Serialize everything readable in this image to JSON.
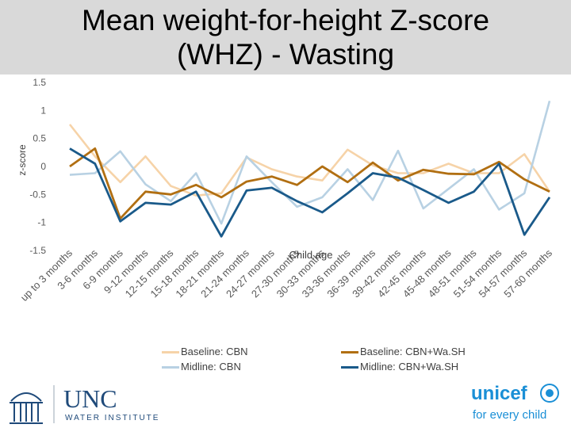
{
  "title_line1": "Mean weight-for-height Z-score",
  "title_line2": "(WHZ) - Wasting",
  "chart_data": {
    "type": "line",
    "xlabel": "Child age",
    "ylabel": "z-score",
    "ylim": [
      -1.5,
      1.5
    ],
    "yticks": [
      1.5,
      1,
      0.5,
      0,
      -0.5,
      -1,
      -1.5
    ],
    "ytick_labels": [
      "1.5",
      "1",
      "0.5",
      "0",
      "-0.5",
      "-1",
      "-1.5"
    ],
    "grid": false,
    "legend_position": "bottom",
    "categories": [
      "up to 3 months",
      "3-6 months",
      "6-9 months",
      "9-12 months",
      "12-15 months",
      "15-18 months",
      "18-21 months",
      "21-24 months",
      "24-27 months",
      "27-30 months",
      "30-33 months",
      "33-36 months",
      "36-39 months",
      "39-42 months",
      "42-45 months",
      "45-48 months",
      "48-51 months",
      "51-54 months",
      "54-57 months",
      "57-60 months"
    ],
    "series": [
      {
        "name": "Baseline: CBN",
        "color": "#f6d3a8",
        "values": [
          0.75,
          0.18,
          -0.28,
          0.18,
          -0.35,
          -0.52,
          -0.48,
          0.16,
          -0.05,
          -0.18,
          -0.25,
          0.3,
          0.02,
          -0.12,
          -0.12,
          0.05,
          -0.12,
          -0.12,
          0.22,
          -0.45
        ]
      },
      {
        "name": "Midline: CBN",
        "color": "#b8d1e3",
        "values": [
          -0.15,
          -0.12,
          0.27,
          -0.32,
          -0.62,
          -0.12,
          -1.02,
          0.18,
          -0.28,
          -0.72,
          -0.55,
          -0.05,
          -0.6,
          0.28,
          -0.75,
          -0.4,
          -0.05,
          -0.77,
          -0.48,
          1.17
        ]
      },
      {
        "name": "Baseline: CBN+Wa.SH",
        "color": "#b16f12",
        "values": [
          0.0,
          0.32,
          -0.93,
          -0.45,
          -0.5,
          -0.33,
          -0.55,
          -0.27,
          -0.18,
          -0.33,
          0.0,
          -0.28,
          0.07,
          -0.25,
          -0.06,
          -0.13,
          -0.14,
          0.08,
          -0.23,
          -0.45
        ]
      },
      {
        "name": "Midline: CBN+Wa.SH",
        "color": "#1a5a8a",
        "values": [
          0.32,
          0.05,
          -0.98,
          -0.65,
          -0.68,
          -0.45,
          -1.25,
          -0.43,
          -0.38,
          -0.62,
          -0.82,
          -0.48,
          -0.12,
          -0.2,
          -0.42,
          -0.65,
          -0.45,
          0.05,
          -1.22,
          -0.55
        ]
      }
    ]
  },
  "legend": [
    {
      "label": "Baseline: CBN",
      "color": "#f6d3a8"
    },
    {
      "label": "Baseline: CBN+Wa.SH",
      "color": "#b16f12"
    },
    {
      "label": "Midline: CBN",
      "color": "#b8d1e3"
    },
    {
      "label": "Midline: CBN+Wa.SH",
      "color": "#1a5a8a"
    }
  ],
  "logo_left": {
    "name": "UNC",
    "subtitle": "WATER INSTITUTE",
    "color": "#1f4a7a"
  },
  "logo_right": {
    "name": "unicef",
    "tagline": "for every child",
    "color": "#1a8fd6"
  }
}
